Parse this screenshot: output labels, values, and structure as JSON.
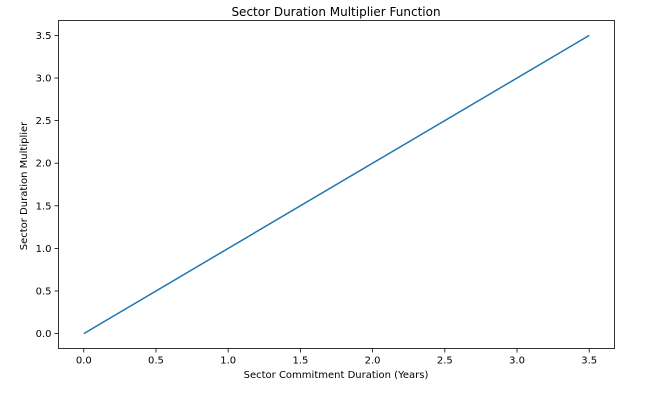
{
  "chart_data": {
    "type": "line",
    "title": "Sector Duration Multiplier Function",
    "xlabel": "Sector Commitment Duration (Years)",
    "ylabel": "Sector Duration Multiplier",
    "xlim": [
      -0.175,
      3.675
    ],
    "ylim": [
      -0.175,
      3.675
    ],
    "xticks": [
      "0.0",
      "0.5",
      "1.0",
      "1.5",
      "2.0",
      "2.5",
      "3.0",
      "3.5"
    ],
    "yticks": [
      "0.0",
      "0.5",
      "1.0",
      "1.5",
      "2.0",
      "2.5",
      "3.0",
      "3.5"
    ],
    "grid": false,
    "series": [
      {
        "color": "#1f77b4",
        "x": [
          0.0,
          3.5
        ],
        "y": [
          0.0,
          3.5
        ]
      }
    ]
  }
}
